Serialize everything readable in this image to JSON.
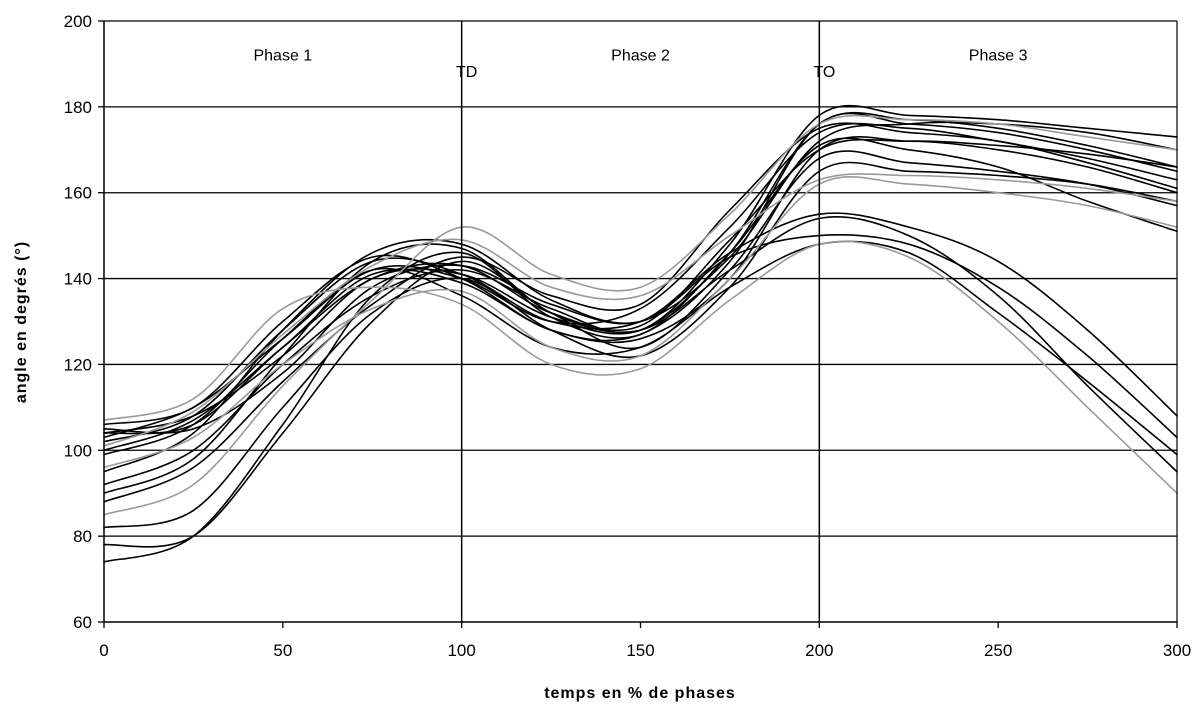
{
  "chart_data": {
    "type": "line",
    "title": "",
    "xlabel": "temps en % de phases",
    "ylabel": "angle en degrés (°)",
    "xlim": [
      0,
      300
    ],
    "ylim": [
      60,
      200
    ],
    "x_ticks": [
      0,
      50,
      100,
      150,
      200,
      250,
      300
    ],
    "y_ticks": [
      60,
      80,
      100,
      120,
      140,
      160,
      180,
      200
    ],
    "grid": "horizontal",
    "legend": "none",
    "vertical_markers": [
      {
        "x": 100,
        "label": "TD"
      },
      {
        "x": 200,
        "label": "TO"
      }
    ],
    "annotations": [
      {
        "x": 50,
        "y": 192,
        "text": "Phase 1"
      },
      {
        "x": 150,
        "y": 192,
        "text": "Phase 2"
      },
      {
        "x": 250,
        "y": 192,
        "text": "Phase 3"
      }
    ],
    "x": [
      0,
      25,
      50,
      75,
      100,
      125,
      150,
      175,
      200,
      225,
      250,
      275,
      300
    ],
    "series": [
      {
        "values": [
          104,
          108,
          122,
          140,
          141,
          131,
          128,
          146,
          176,
          177,
          175,
          171,
          166
        ],
        "color": "#000000"
      },
      {
        "values": [
          103,
          110,
          126,
          142,
          140,
          130,
          133,
          152,
          174,
          175,
          172,
          168,
          163
        ],
        "color": "#000000"
      },
      {
        "values": [
          105,
          105,
          118,
          138,
          143,
          134,
          130,
          145,
          172,
          176,
          176,
          174,
          170
        ],
        "color": "#000000"
      },
      {
        "values": [
          100,
          107,
          124,
          141,
          139,
          128,
          126,
          140,
          170,
          172,
          170,
          166,
          160
        ],
        "color": "#000000"
      },
      {
        "values": [
          92,
          100,
          120,
          136,
          142,
          133,
          128,
          148,
          178,
          178,
          177,
          175,
          173
        ],
        "color": "#000000"
      },
      {
        "values": [
          88,
          96,
          116,
          134,
          145,
          136,
          134,
          156,
          175,
          174,
          172,
          167,
          161
        ],
        "color": "#000000"
      },
      {
        "values": [
          82,
          86,
          110,
          132,
          140,
          128,
          122,
          138,
          165,
          165,
          164,
          162,
          158
        ],
        "color": "#000000"
      },
      {
        "values": [
          78,
          80,
          104,
          130,
          144,
          132,
          124,
          142,
          168,
          167,
          165,
          162,
          157
        ],
        "color": "#000000"
      },
      {
        "values": [
          74,
          80,
          106,
          136,
          146,
          131,
          127,
          146,
          171,
          170,
          166,
          158,
          151
        ],
        "color": "#000000"
      },
      {
        "values": [
          95,
          104,
          128,
          146,
          148,
          135,
          130,
          145,
          150,
          148,
          138,
          122,
          103
        ],
        "color": "#000000"
      },
      {
        "values": [
          90,
          98,
          122,
          144,
          147,
          132,
          128,
          142,
          154,
          150,
          136,
          115,
          95
        ],
        "color": "#000000"
      },
      {
        "values": [
          99,
          106,
          126,
          142,
          136,
          124,
          124,
          138,
          148,
          146,
          132,
          116,
          99
        ],
        "color": "#000000"
      },
      {
        "values": [
          102,
          108,
          128,
          144,
          141,
          130,
          130,
          146,
          155,
          152,
          144,
          128,
          108
        ],
        "color": "#000000"
      },
      {
        "values": [
          106,
          110,
          130,
          145,
          140,
          128,
          127,
          144,
          176,
          176,
          174,
          170,
          165
        ],
        "color": "#000000"
      },
      {
        "values": [
          104,
          106,
          124,
          140,
          143,
          132,
          129,
          149,
          170,
          172,
          171,
          169,
          166
        ],
        "color": "#000000"
      },
      {
        "values": [
          107,
          112,
          133,
          138,
          134,
          120,
          119,
          135,
          148,
          145,
          130,
          110,
          90
        ],
        "color": "#9a9a9a"
      },
      {
        "values": [
          101,
          109,
          127,
          143,
          149,
          138,
          136,
          150,
          163,
          164,
          163,
          161,
          158
        ],
        "color": "#9a9a9a"
      },
      {
        "values": [
          96,
          103,
          120,
          133,
          137,
          124,
          122,
          140,
          162,
          162,
          160,
          157,
          152
        ],
        "color": "#9a9a9a"
      },
      {
        "values": [
          85,
          92,
          115,
          135,
          152,
          141,
          138,
          155,
          176,
          177,
          176,
          173,
          170
        ],
        "color": "#9a9a9a"
      }
    ]
  }
}
